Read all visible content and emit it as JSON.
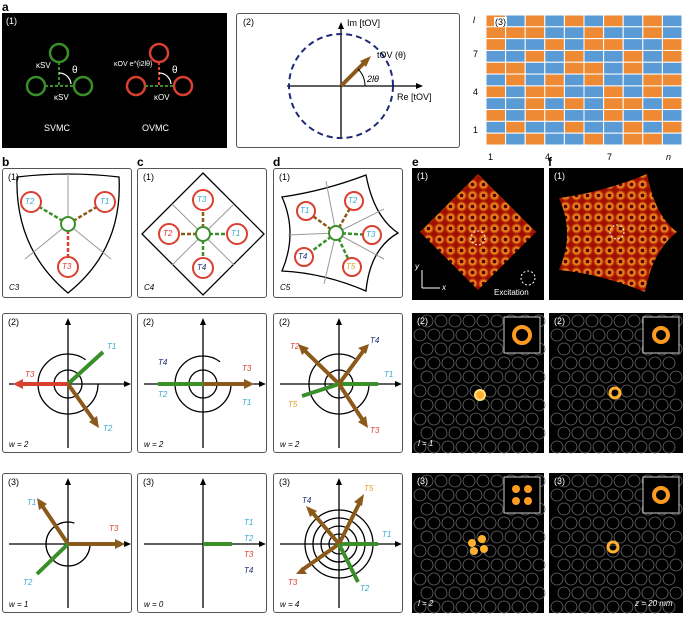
{
  "letters": {
    "a": "a",
    "b": "b",
    "c": "c",
    "d": "d",
    "e": "e",
    "f": "f"
  },
  "top": {
    "p1": {
      "tag": "(1)",
      "kappa_sv": "κSV",
      "kappa_sv2": "κSV",
      "theta": "θ",
      "kappa_ov_e": "κOV e^{i2lθ}",
      "kappa_ov": "κOV",
      "theta2": "θ",
      "label_left": "SVMC",
      "label_right": "OVMC"
    },
    "p2": {
      "tag": "(2)",
      "im": "Im [tOV]",
      "re": "Re [tOV]",
      "tov": "tOV (θ)",
      "two_l_theta": "2lθ"
    },
    "p3": {
      "tag": "(3)",
      "y_ticks": [
        "l",
        "7",
        "4",
        "1"
      ],
      "x_ticks": [
        "1",
        "4",
        "7",
        "n"
      ]
    }
  },
  "colors": {
    "orange": "#ee8a33",
    "blue": "#5b9bd5",
    "green": "#3a8f2a",
    "red": "#d94030",
    "brown": "#8b5a1a",
    "navy": "#1e2a78",
    "cyan": "#3aa9c9"
  },
  "grid_rows": [
    "OBOBOBOBOB",
    "OOOBBOBBOB",
    "OBBOBOOBBO",
    "BBOBOBBOBO",
    "OOBBOOBOBB",
    "BOBOBOBBOO",
    "OBOOBBOBOB",
    "BBOBOBOOBO",
    "OBOOBBOBOB",
    "BOBBOBBOBO",
    "OBOBBOBOOB"
  ],
  "b": {
    "tag1": "(1)",
    "group": "C3",
    "T1": "T1",
    "T2": "T2",
    "T3": "T3",
    "tag2": "(2)",
    "w2": "w = 2",
    "tag3": "(3)",
    "w3": "w = 1"
  },
  "c": {
    "tag1": "(1)",
    "group": "C4",
    "T1": "T1",
    "T2": "T2",
    "T3": "T3",
    "T4": "T4",
    "tag2": "(2)",
    "w2": "w = 2",
    "tag3": "(3)",
    "w3": "w = 0"
  },
  "d": {
    "tag1": "(1)",
    "group": "C5",
    "T1": "T1",
    "T2": "T2",
    "T3": "T3",
    "T4": "T4",
    "T5": "T5",
    "tag2": "(2)",
    "w2": "w = 2",
    "tag3": "(3)",
    "w3": "w = 4"
  },
  "e": {
    "tag1": "(1)",
    "x": "x",
    "y": "y",
    "excitation": "Excitation",
    "tag2": "(2)",
    "l2": "l = 1",
    "tag3": "(3)",
    "l3": "l = 2"
  },
  "f": {
    "tag1": "(1)",
    "tag2": "(2)",
    "tag3": "(3)",
    "z": "z = 20 mm"
  }
}
